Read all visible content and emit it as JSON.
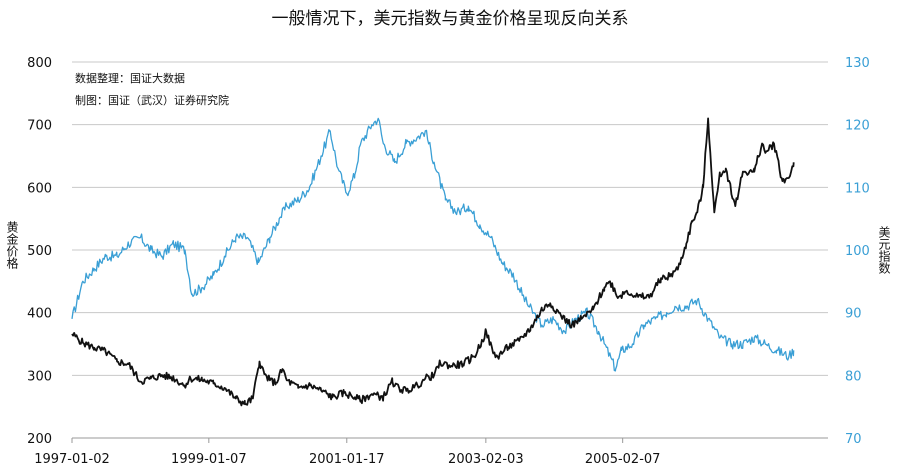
{
  "chart_data": {
    "type": "line",
    "title": "一般情况下，美元指数与黄金价格呈现反向关系",
    "annotations": [
      "数据整理：国证大数据",
      "制图：国证（武汉）证券研究院"
    ],
    "ylabel_left": "黄金价格",
    "ylabel_right": "美元指数",
    "ylim_left": [
      200,
      800
    ],
    "ylim_right": [
      70,
      130
    ],
    "yticks_left": [
      200,
      300,
      400,
      500,
      600,
      700,
      800
    ],
    "yticks_right": [
      70,
      80,
      90,
      100,
      110,
      120,
      130
    ],
    "x_tick_labels": [
      "1997-01-02",
      "1999-01-07",
      "2001-01-17",
      "2003-02-03",
      "2005-02-07"
    ],
    "x_tick_dates": [
      "1997-01-02",
      "1999-01-07",
      "2001-01-17",
      "2003-02-03",
      "2005-02-07"
    ],
    "xlim": [
      "1997-01-02",
      "2008-02-15"
    ],
    "grid": "horizontal",
    "legend": "none",
    "series": [
      {
        "axis": "left",
        "color": "#111111",
        "x": [
          "1997-01-02",
          "1997-03-01",
          "1997-05-01",
          "1997-07-01",
          "1997-09-01",
          "1997-11-01",
          "1998-01-05",
          "1998-03-01",
          "1998-05-01",
          "1998-07-01",
          "1998-08-28",
          "1998-10-01",
          "1998-12-01",
          "1999-02-01",
          "1999-04-01",
          "1999-06-01",
          "1999-07-20",
          "1999-09-01",
          "1999-09-28",
          "1999-10-06",
          "1999-11-01",
          "1999-12-01",
          "2000-01-03",
          "2000-02-07",
          "2000-03-01",
          "2000-05-01",
          "2000-07-01",
          "2000-09-01",
          "2000-11-01",
          "2001-01-02",
          "2001-03-01",
          "2001-04-02",
          "2001-06-01",
          "2001-08-01",
          "2001-09-19",
          "2001-10-01",
          "2001-12-03",
          "2002-02-01",
          "2002-03-15",
          "2002-05-01",
          "2002-06-03",
          "2002-08-01",
          "2002-10-01",
          "2002-12-02",
          "2003-01-15",
          "2003-02-05",
          "2003-03-15",
          "2003-04-07",
          "2003-06-02",
          "2003-08-01",
          "2003-10-01",
          "2003-12-01",
          "2004-01-15",
          "2004-03-01",
          "2004-04-01",
          "2004-05-10",
          "2004-07-01",
          "2004-09-01",
          "2004-11-01",
          "2004-12-01",
          "2005-01-15",
          "2005-03-01",
          "2005-05-01",
          "2005-07-01",
          "2005-09-01",
          "2005-10-01",
          "2005-12-01",
          "2006-01-15",
          "2006-02-15",
          "2006-03-15",
          "2006-04-15",
          "2006-05-12",
          "2006-06-14",
          "2006-07-15",
          "2006-08-15",
          "2006-10-05",
          "2006-11-15",
          "2007-01-15",
          "2007-02-26",
          "2007-03-15",
          "2007-05-01",
          "2007-06-15",
          "2007-07-20",
          "2007-08-15"
        ],
        "values": [
          366,
          352,
          344,
          338,
          322,
          318,
          290,
          295,
          300,
          296,
          284,
          295,
          293,
          287,
          280,
          263,
          254,
          263,
          310,
          322,
          302,
          292,
          288,
          310,
          292,
          280,
          284,
          276,
          265,
          272,
          265,
          260,
          270,
          265,
          290,
          283,
          275,
          284,
          295,
          300,
          320,
          315,
          318,
          330,
          355,
          370,
          335,
          330,
          345,
          355,
          375,
          405,
          415,
          400,
          390,
          380,
          390,
          405,
          440,
          450,
          425,
          435,
          425,
          425,
          455,
          455,
          470,
          510,
          545,
          560,
          600,
          710,
          560,
          620,
          630,
          570,
          625,
          625,
          670,
          655,
          670,
          610,
          615,
          640
        ]
      },
      {
        "axis": "right",
        "color": "#3a9fd5",
        "x": [
          "1997-01-02",
          "1997-03-01",
          "1997-05-01",
          "1997-07-01",
          "1997-09-01",
          "1997-11-01",
          "1998-01-05",
          "1998-03-01",
          "1998-05-01",
          "1998-07-01",
          "1998-09-01",
          "1998-10-08",
          "1998-12-01",
          "1999-02-01",
          "1999-04-01",
          "1999-06-01",
          "1999-08-01",
          "1999-10-01",
          "1999-12-01",
          "2000-01-20",
          "2000-03-01",
          "2000-05-01",
          "2000-07-01",
          "2000-09-01",
          "2000-10-20",
          "2000-12-01",
          "2001-01-17",
          "2001-03-01",
          "2001-04-02",
          "2001-06-01",
          "2001-07-05",
          "2001-08-01",
          "2001-10-01",
          "2001-12-01",
          "2002-02-01",
          "2002-03-15",
          "2002-05-01",
          "2002-07-01",
          "2002-09-01",
          "2002-11-01",
          "2003-01-02",
          "2003-03-01",
          "2003-05-01",
          "2003-07-01",
          "2003-09-01",
          "2003-10-15",
          "2003-12-01",
          "2004-02-01",
          "2004-04-01",
          "2004-06-01",
          "2004-08-01",
          "2004-10-01",
          "2004-12-31",
          "2005-02-01",
          "2005-04-01",
          "2005-06-01",
          "2005-08-01",
          "2005-10-01",
          "2005-11-15",
          "2006-01-15",
          "2006-03-15",
          "2006-05-12",
          "2006-07-15",
          "2006-09-15",
          "2006-11-15",
          "2007-01-15",
          "2007-03-15",
          "2007-05-15",
          "2007-07-20",
          "2007-08-15"
        ],
        "values": [
          89,
          95,
          97,
          99,
          99,
          101,
          102,
          100,
          99,
          101,
          100,
          93,
          94,
          96,
          99,
          102,
          102,
          98,
          102,
          105,
          107,
          108,
          110,
          115,
          119,
          113,
          109,
          112,
          117,
          120,
          121,
          117,
          114,
          117,
          118,
          119,
          114,
          108,
          106,
          107,
          104,
          102,
          98,
          96,
          92,
          90,
          88,
          89,
          87,
          89,
          90,
          87,
          81,
          84,
          85,
          88,
          89,
          90,
          91,
          91,
          92,
          89,
          86,
          85,
          85,
          86,
          85,
          84,
          83,
          84
        ]
      }
    ]
  }
}
